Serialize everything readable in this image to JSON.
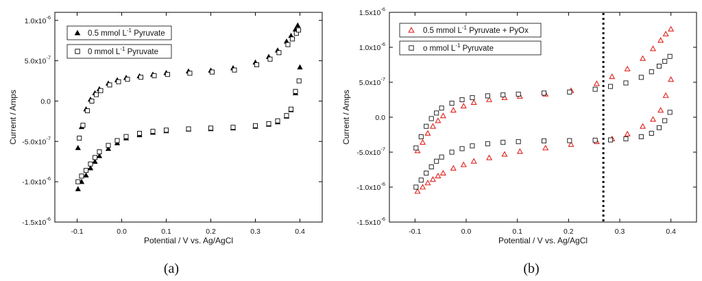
{
  "chart_data": [
    {
      "type": "scatter",
      "panel_label": "(a)",
      "xlabel": "Potential / V vs. Ag/AgCl",
      "ylabel": "Current / Amps",
      "xlim": [
        -0.15,
        0.45
      ],
      "ylim": [
        -1.5e-06,
        1.1e-06
      ],
      "xticks": [
        -0.1,
        0.0,
        0.1,
        0.2,
        0.3,
        0.4
      ],
      "xtick_labels": [
        "-0.1",
        "0.0",
        "0.1",
        "0.2",
        "0.3",
        "0.4"
      ],
      "yticks": [
        1e-06,
        5e-07,
        0.0,
        -5e-07,
        -1e-06,
        -1.5e-06
      ],
      "ytick_labels": [
        {
          "mant": "1.0x10",
          "exp": "-6"
        },
        {
          "mant": "5.0x10",
          "exp": "-7"
        },
        {
          "mant": "0.0",
          "exp": ""
        },
        {
          "mant": "-5.0x10",
          "exp": "-7"
        },
        {
          "mant": "-1.0x10",
          "exp": "-6"
        },
        {
          "mant": "-1.5x10",
          "exp": "-6"
        }
      ],
      "legend_position": "top-left",
      "series": [
        {
          "name": "0.5 mmol L-1 Pyruvate",
          "legend": {
            "pre": "0.5 mmol L",
            "sup": "-1",
            "post": " Pyruvate"
          },
          "marker": "filled-triangle",
          "color": "#000000",
          "upper": {
            "x": [
              -0.098,
              -0.09,
              -0.08,
              -0.07,
              -0.06,
              -0.05,
              -0.03,
              -0.01,
              0.01,
              0.04,
              0.07,
              0.1,
              0.15,
              0.2,
              0.25,
              0.3,
              0.33,
              0.35,
              0.37,
              0.38,
              0.39,
              0.395
            ],
            "y": [
              -5.8e-07,
              -3.2e-07,
              -1e-07,
              2e-08,
              1e-07,
              1.5e-07,
              2.2e-07,
              2.6e-07,
              2.9e-07,
              3.1e-07,
              3.3e-07,
              3.5e-07,
              3.7e-07,
              3.8e-07,
              4.1e-07,
              4.8e-07,
              5.5e-07,
              6.3e-07,
              7.4e-07,
              8.1e-07,
              8.9e-07,
              9.4e-07
            ]
          },
          "lower": {
            "x": [
              -0.098,
              -0.09,
              -0.08,
              -0.07,
              -0.06,
              -0.05,
              -0.03,
              -0.01,
              0.01,
              0.04,
              0.07,
              0.1,
              0.15,
              0.2,
              0.25,
              0.3,
              0.33,
              0.35,
              0.37,
              0.38,
              0.39,
              0.4
            ],
            "y": [
              -1.09e-06,
              -1e-06,
              -9.2e-07,
              -8.3e-07,
              -7.5e-07,
              -6.8e-07,
              -5.9e-07,
              -5.2e-07,
              -4.6e-07,
              -4.2e-07,
              -3.9e-07,
              -3.7e-07,
              -3.5e-07,
              -3.45e-07,
              -3.35e-07,
              -3.15e-07,
              -2.9e-07,
              -2.6e-07,
              -1.9e-07,
              -1.1e-07,
              1e-07,
              4.2e-07
            ]
          }
        },
        {
          "name": "0 mmol L-1 Pyruvate",
          "legend": {
            "pre": "0 mmol L",
            "sup": "-1",
            "post": " Pyruvate"
          },
          "marker": "open-square",
          "color": "#000000",
          "upper": {
            "x": [
              -0.095,
              -0.087,
              -0.077,
              -0.067,
              -0.057,
              -0.047,
              -0.027,
              -0.007,
              0.013,
              0.043,
              0.073,
              0.103,
              0.153,
              0.203,
              0.253,
              0.303,
              0.333,
              0.353,
              0.373,
              0.383,
              0.392,
              0.397
            ],
            "y": [
              -4.6e-07,
              -3e-07,
              -1.2e-07,
              0.0,
              8e-08,
              1.3e-07,
              2e-07,
              2.4e-07,
              2.7e-07,
              2.95e-07,
              3.15e-07,
              3.3e-07,
              3.45e-07,
              3.6e-07,
              3.85e-07,
              4.5e-07,
              5.2e-07,
              6e-07,
              7e-07,
              7.7e-07,
              8.4e-07,
              8.8e-07
            ]
          },
          "lower": {
            "x": [
              -0.098,
              -0.09,
              -0.08,
              -0.07,
              -0.06,
              -0.05,
              -0.03,
              -0.01,
              0.01,
              0.04,
              0.07,
              0.1,
              0.15,
              0.2,
              0.25,
              0.3,
              0.33,
              0.35,
              0.37,
              0.38,
              0.39,
              0.398
            ],
            "y": [
              -1e-06,
              -9.3e-07,
              -8.6e-07,
              -7.8e-07,
              -7e-07,
              -6.3e-07,
              -5.5e-07,
              -4.9e-07,
              -4.4e-07,
              -4e-07,
              -3.75e-07,
              -3.6e-07,
              -3.45e-07,
              -3.35e-07,
              -3.25e-07,
              -3.05e-07,
              -2.8e-07,
              -2.45e-07,
              -1.8e-07,
              -1e-07,
              1.2e-07,
              2.5e-07
            ]
          }
        }
      ]
    },
    {
      "type": "scatter",
      "panel_label": "(b)",
      "xlabel": "Potential / V vs. Ag/AgCl",
      "ylabel": "Current / Amps",
      "xlim": [
        -0.15,
        0.45
      ],
      "ylim": [
        -1.5e-06,
        1.5e-06
      ],
      "xticks": [
        -0.1,
        0.0,
        0.1,
        0.2,
        0.3,
        0.4
      ],
      "xtick_labels": [
        "-0.1",
        "0.0",
        "0.1",
        "0.2",
        "0.3",
        "0.4"
      ],
      "yticks": [
        1.5e-06,
        1e-06,
        5e-07,
        0.0,
        -5e-07,
        -1e-06,
        -1.5e-06
      ],
      "ytick_labels": [
        {
          "mant": "1.5x10",
          "exp": "-6"
        },
        {
          "mant": "1.0x10",
          "exp": "-6"
        },
        {
          "mant": "5.0x10",
          "exp": "-7"
        },
        {
          "mant": "0.0",
          "exp": ""
        },
        {
          "mant": "-5.0x10",
          "exp": "-7"
        },
        {
          "mant": "-1.0x10",
          "exp": "-6"
        },
        {
          "mant": "-1.5x10",
          "exp": "-6"
        }
      ],
      "legend_position": "top-left",
      "vline_x": 0.268,
      "series": [
        {
          "name": "0.5 mmol L-1 Pyruvate + PyOx",
          "legend": {
            "pre": "0.5 mmol L",
            "sup": "-1",
            "post": " Pyruvate + PyOx"
          },
          "marker": "open-triangle",
          "color": "#e0201b",
          "upper": {
            "x": [
              -0.095,
              -0.085,
              -0.075,
              -0.065,
              -0.055,
              -0.045,
              -0.025,
              -0.005,
              0.015,
              0.045,
              0.075,
              0.105,
              0.155,
              0.205,
              0.255,
              0.285,
              0.315,
              0.345,
              0.365,
              0.38,
              0.39,
              0.4
            ],
            "y": [
              -4.8e-07,
              -3.6e-07,
              -2.3e-07,
              -1.3e-07,
              -5e-08,
              2e-08,
              1e-07,
              1.6e-07,
              2.1e-07,
              2.5e-07,
              2.8e-07,
              3e-07,
              3.3e-07,
              3.8e-07,
              4.8e-07,
              5.8e-07,
              6.9e-07,
              8.4e-07,
              9.8e-07,
              1.1e-06,
              1.19e-06,
              1.26e-06
            ]
          },
          "lower": {
            "x": [
              -0.095,
              -0.085,
              -0.075,
              -0.065,
              -0.055,
              -0.045,
              -0.025,
              -0.005,
              0.015,
              0.045,
              0.075,
              0.105,
              0.155,
              0.205,
              0.255,
              0.285,
              0.315,
              0.345,
              0.365,
              0.38,
              0.39,
              0.4
            ],
            "y": [
              -1.06e-06,
              -1e-06,
              -9.4e-07,
              -8.9e-07,
              -8.4e-07,
              -8e-07,
              -7.3e-07,
              -6.8e-07,
              -6.3e-07,
              -5.8e-07,
              -5.3e-07,
              -4.9e-07,
              -4.4e-07,
              -3.9e-07,
              -3.5e-07,
              -3.1e-07,
              -2.4e-07,
              -1.3e-07,
              -3e-08,
              1e-07,
              3.1e-07,
              5.4e-07
            ]
          }
        },
        {
          "name": "o mmol L-1 Pyruvate",
          "legend": {
            "pre": "o mmol L",
            "sup": "-1",
            "post": " Pyruvate"
          },
          "marker": "open-square",
          "color": "#111111",
          "upper": {
            "x": [
              -0.098,
              -0.088,
              -0.078,
              -0.068,
              -0.058,
              -0.048,
              -0.028,
              -0.008,
              0.012,
              0.042,
              0.072,
              0.102,
              0.152,
              0.202,
              0.252,
              0.282,
              0.312,
              0.342,
              0.362,
              0.377,
              0.388,
              0.398
            ],
            "y": [
              -4.4e-07,
              -2.8e-07,
              -1.3e-07,
              -2e-08,
              6e-08,
              1.3e-07,
              2e-07,
              2.5e-07,
              2.8e-07,
              3.05e-07,
              3.2e-07,
              3.3e-07,
              3.45e-07,
              3.6e-07,
              4e-07,
              4.4e-07,
              4.9e-07,
              5.7e-07,
              6.5e-07,
              7.3e-07,
              8e-07,
              8.7e-07
            ]
          },
          "lower": {
            "x": [
              -0.098,
              -0.088,
              -0.078,
              -0.068,
              -0.058,
              -0.048,
              -0.028,
              -0.008,
              0.012,
              0.042,
              0.072,
              0.102,
              0.152,
              0.202,
              0.252,
              0.282,
              0.312,
              0.342,
              0.362,
              0.377,
              0.388,
              0.398
            ],
            "y": [
              -1e-06,
              -9e-07,
              -8e-07,
              -7.1e-07,
              -6.3e-07,
              -5.7e-07,
              -5e-07,
              -4.5e-07,
              -4.1e-07,
              -3.8e-07,
              -3.6e-07,
              -3.5e-07,
              -3.4e-07,
              -3.35e-07,
              -3.3e-07,
              -3.25e-07,
              -3.1e-07,
              -2.8e-07,
              -2.3e-07,
              -1.5e-07,
              -5e-08,
              7e-08
            ]
          }
        }
      ]
    }
  ]
}
